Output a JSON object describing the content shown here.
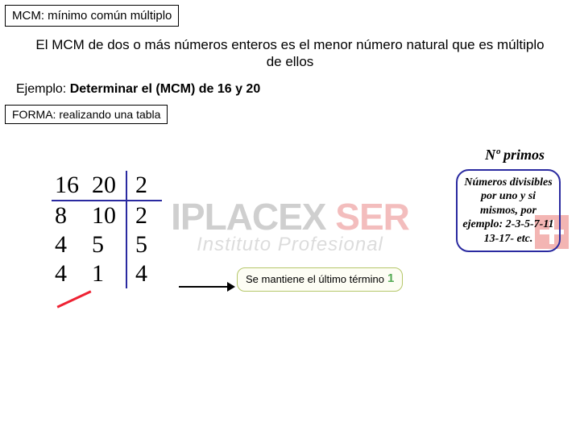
{
  "title_box": "MCM: mínimo común múltiplo",
  "definition": "El MCM de dos o más números enteros es el menor número natural que es múltiplo de ellos",
  "example": {
    "prefix": "Ejemplo: ",
    "text": "Determinar el (MCM) de 16 y 20"
  },
  "forma": "FORMA: realizando una tabla",
  "table": {
    "header": [
      "16",
      "20",
      "2"
    ],
    "rows": [
      [
        "8",
        "10",
        "2"
      ],
      [
        "4",
        "5",
        "5"
      ],
      [
        "4",
        "1",
        "4"
      ]
    ]
  },
  "callout": {
    "text": "Se mantiene el último término",
    "badge": "1"
  },
  "primos_header": "Nº primos",
  "primos_box": "Números divisibles por uno y si mismos, por ejemplo:\n2-3-5-7-11\n13-17- etc.",
  "watermark": {
    "line1_a": "IPLACEX ",
    "line1_b": "SER",
    "line2": "Instituto  Profesional"
  }
}
